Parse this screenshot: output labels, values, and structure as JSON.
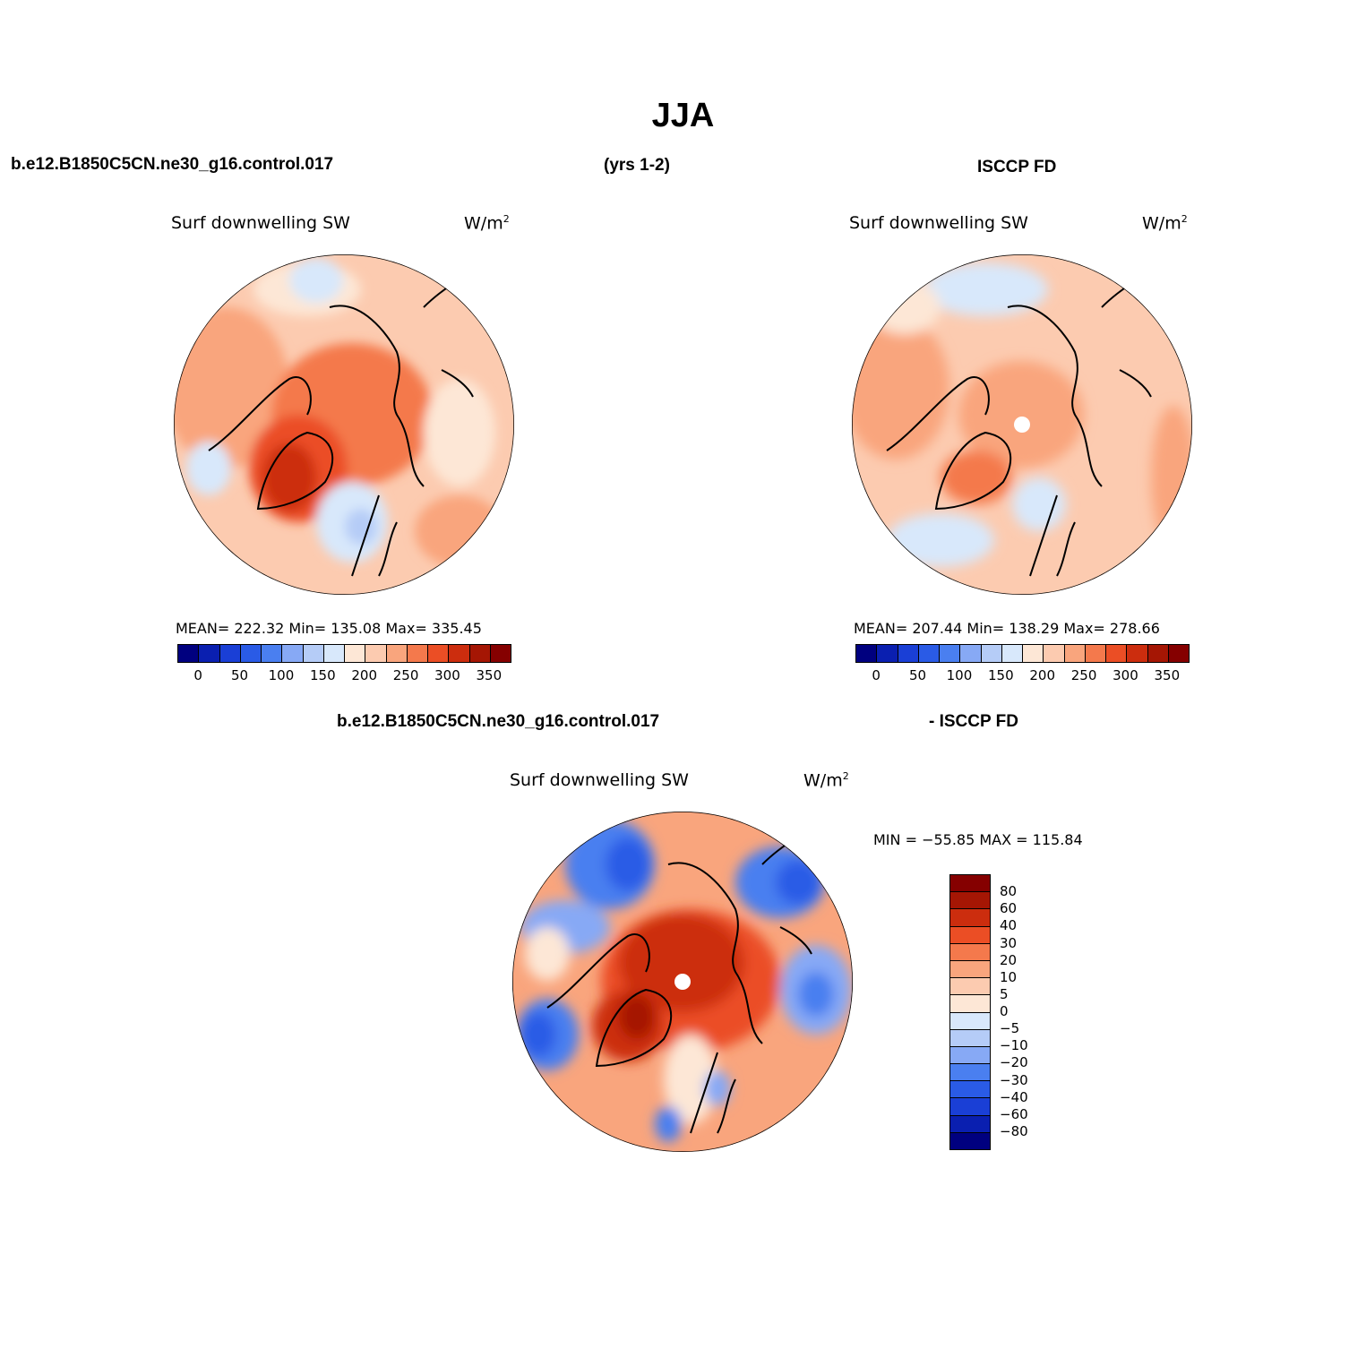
{
  "page_title": "JJA",
  "top_left": {
    "case_label": "b.e12.B1850C5CN.ne30_g16.control.017",
    "years": "(yrs 1-2)",
    "field": "Surf downwelling SW",
    "units": "W/m",
    "units_sup": "2",
    "stats": "MEAN= 222.32   Min= 135.08   Max= 335.45"
  },
  "top_right": {
    "case_label": "ISCCP FD",
    "field": "Surf downwelling SW",
    "units": "W/m",
    "units_sup": "2",
    "stats": "MEAN= 207.44   Min= 138.29   Max= 278.66"
  },
  "bottom": {
    "case_label": "b.e12.B1850C5CN.ne30_g16.control.017",
    "minus_label": "- ISCCP FD",
    "field": "Surf downwelling SW",
    "units": "W/m",
    "units_sup": "2",
    "stats": "MIN = −55.85 MAX = 115.84"
  },
  "colorbar_abs": {
    "colors": [
      "#00007f",
      "#0a1fb0",
      "#1a3fd6",
      "#2a5be6",
      "#4a7ff0",
      "#87a9f5",
      "#b5ccf7",
      "#d8e8fb",
      "#fde7d6",
      "#fccbb0",
      "#f9a57d",
      "#f4794c",
      "#eb4e25",
      "#cc2d0e",
      "#a51604",
      "#850000"
    ],
    "ticks": [
      "0",
      "50",
      "100",
      "150",
      "200",
      "250",
      "300",
      "350"
    ]
  },
  "colorbar_diff": {
    "colors": [
      "#850000",
      "#a51604",
      "#cc2d0e",
      "#eb4e25",
      "#f4794c",
      "#f9a57d",
      "#fccbb0",
      "#fde7d6",
      "#d8e8fb",
      "#b5ccf7",
      "#87a9f5",
      "#4a7ff0",
      "#2a5be6",
      "#1a3fd6",
      "#0a1fb0",
      "#00007f"
    ],
    "ticks": [
      "80",
      "60",
      "40",
      "30",
      "20",
      "10",
      "5",
      "0",
      "−5",
      "−10",
      "−20",
      "−30",
      "−40",
      "−60",
      "−80"
    ]
  }
}
